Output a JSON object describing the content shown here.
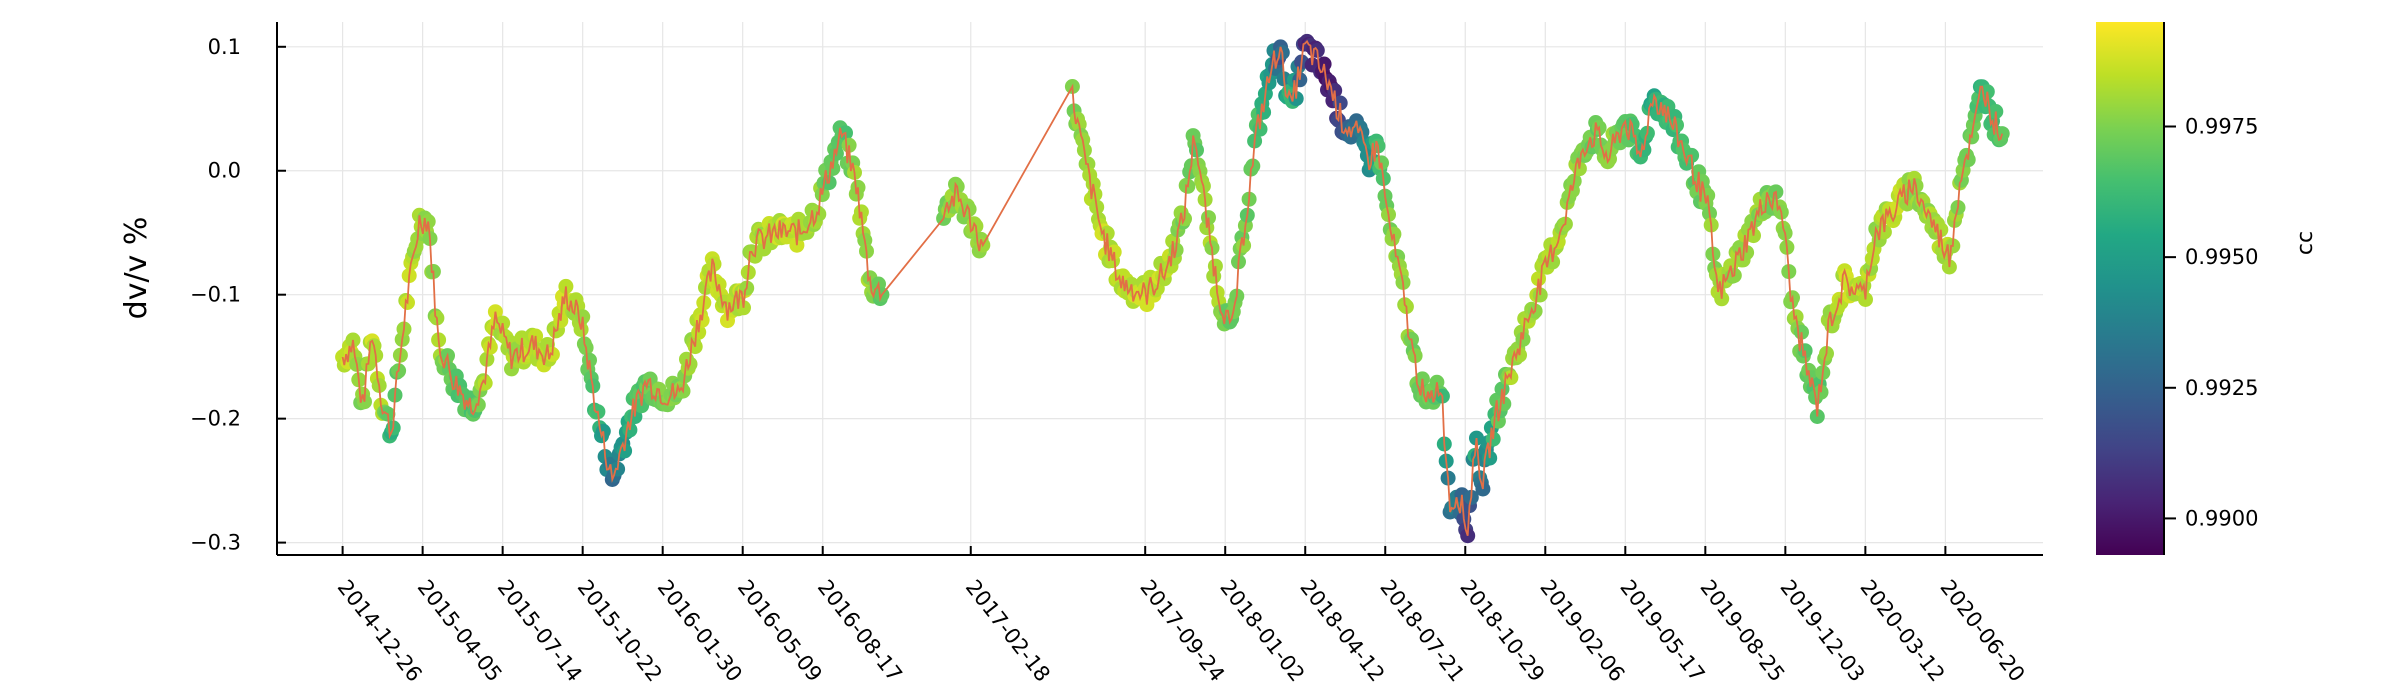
{
  "chart_data": {
    "type": "scatter",
    "ylabel": "dv/v %",
    "colorbar_label": "cc",
    "ylim": [
      -0.31,
      0.12
    ],
    "y_ticks": [
      -0.3,
      -0.2,
      -0.1,
      0.0,
      0.1
    ],
    "y_tick_labels": [
      "−0.3",
      "−0.2",
      "−0.1",
      "0.0",
      "0.1"
    ],
    "x_ticks": [
      "2014-12-26",
      "2015-04-05",
      "2015-07-14",
      "2015-10-22",
      "2016-01-30",
      "2016-05-09",
      "2016-08-17",
      "2017-02-18",
      "2017-09-24",
      "2018-01-02",
      "2018-04-12",
      "2018-07-21",
      "2018-10-29",
      "2019-02-06",
      "2019-05-17",
      "2019-08-25",
      "2019-12-03",
      "2020-03-12",
      "2020-06-20"
    ],
    "xlim": [
      "2014-10-05",
      "2020-10-20"
    ],
    "colorbar": {
      "colormap": "viridis",
      "range": [
        0.9893,
        0.9995
      ],
      "ticks": [
        0.99,
        0.9925,
        0.995,
        0.9975
      ],
      "tick_labels": [
        "0.9900",
        "0.9925",
        "0.9950",
        "0.9975"
      ]
    },
    "grid": true,
    "legend": "none",
    "line_color": "#e26f46",
    "series": [
      {
        "style": "scatter + line",
        "keypoints": [
          {
            "date": "2014-12-26",
            "dvv": -0.15,
            "cc": 0.9985
          },
          {
            "date": "2015-01-08",
            "dvv": -0.14,
            "cc": 0.9985
          },
          {
            "date": "2015-01-20",
            "dvv": -0.19,
            "cc": 0.9975
          },
          {
            "date": "2015-02-01",
            "dvv": -0.13,
            "cc": 0.9985
          },
          {
            "date": "2015-02-14",
            "dvv": -0.19,
            "cc": 0.998
          },
          {
            "date": "2015-02-25",
            "dvv": -0.21,
            "cc": 0.996
          },
          {
            "date": "2015-03-15",
            "dvv": -0.11,
            "cc": 0.9985
          },
          {
            "date": "2015-04-01",
            "dvv": -0.04,
            "cc": 0.998
          },
          {
            "date": "2015-04-12",
            "dvv": -0.04,
            "cc": 0.9975
          },
          {
            "date": "2015-04-25",
            "dvv": -0.14,
            "cc": 0.998
          },
          {
            "date": "2015-05-15",
            "dvv": -0.17,
            "cc": 0.997
          },
          {
            "date": "2015-06-05",
            "dvv": -0.19,
            "cc": 0.9965
          },
          {
            "date": "2015-06-20",
            "dvv": -0.17,
            "cc": 0.998
          },
          {
            "date": "2015-07-05",
            "dvv": -0.12,
            "cc": 0.9985
          },
          {
            "date": "2015-07-25",
            "dvv": -0.15,
            "cc": 0.998
          },
          {
            "date": "2015-08-20",
            "dvv": -0.14,
            "cc": 0.9985
          },
          {
            "date": "2015-09-10",
            "dvv": -0.15,
            "cc": 0.9985
          },
          {
            "date": "2015-10-01",
            "dvv": -0.1,
            "cc": 0.9985
          },
          {
            "date": "2015-10-20",
            "dvv": -0.12,
            "cc": 0.998
          },
          {
            "date": "2015-11-10",
            "dvv": -0.2,
            "cc": 0.996
          },
          {
            "date": "2015-11-28",
            "dvv": -0.25,
            "cc": 0.993
          },
          {
            "date": "2015-12-20",
            "dvv": -0.2,
            "cc": 0.996
          },
          {
            "date": "2016-01-10",
            "dvv": -0.17,
            "cc": 0.997
          },
          {
            "date": "2016-02-01",
            "dvv": -0.18,
            "cc": 0.9975
          },
          {
            "date": "2016-02-20",
            "dvv": -0.18,
            "cc": 0.9975
          },
          {
            "date": "2016-03-15",
            "dvv": -0.12,
            "cc": 0.9985
          },
          {
            "date": "2016-04-01",
            "dvv": -0.08,
            "cc": 0.9985
          },
          {
            "date": "2016-04-20",
            "dvv": -0.11,
            "cc": 0.9985
          },
          {
            "date": "2016-05-10",
            "dvv": -0.1,
            "cc": 0.9985
          },
          {
            "date": "2016-05-20",
            "dvv": -0.06,
            "cc": 0.998
          },
          {
            "date": "2016-06-20",
            "dvv": -0.05,
            "cc": 0.9985
          },
          {
            "date": "2016-07-20",
            "dvv": -0.05,
            "cc": 0.9985
          },
          {
            "date": "2016-08-10",
            "dvv": -0.03,
            "cc": 0.998
          },
          {
            "date": "2016-08-25",
            "dvv": 0.0,
            "cc": 0.997
          },
          {
            "date": "2016-09-10",
            "dvv": 0.03,
            "cc": 0.9965
          },
          {
            "date": "2016-09-28",
            "dvv": -0.01,
            "cc": 0.998
          },
          {
            "date": "2016-10-15",
            "dvv": -0.09,
            "cc": 0.998
          },
          {
            "date": "2016-10-30",
            "dvv": -0.1,
            "cc": 0.997
          },
          {
            "date": "2017-01-15",
            "dvv": -0.03,
            "cc": 0.9975
          },
          {
            "date": "2017-02-01",
            "dvv": -0.02,
            "cc": 0.998
          },
          {
            "date": "2017-02-18",
            "dvv": -0.04,
            "cc": 0.9975
          },
          {
            "date": "2017-03-05",
            "dvv": -0.06,
            "cc": 0.998
          },
          {
            "date": "2017-06-25",
            "dvv": 0.06,
            "cc": 0.9975
          },
          {
            "date": "2017-07-10",
            "dvv": 0.01,
            "cc": 0.998
          },
          {
            "date": "2017-08-01",
            "dvv": -0.05,
            "cc": 0.9985
          },
          {
            "date": "2017-08-25",
            "dvv": -0.09,
            "cc": 0.9985
          },
          {
            "date": "2017-09-24",
            "dvv": -0.1,
            "cc": 0.9985
          },
          {
            "date": "2017-10-20",
            "dvv": -0.08,
            "cc": 0.9985
          },
          {
            "date": "2017-11-10",
            "dvv": -0.04,
            "cc": 0.9975
          },
          {
            "date": "2017-11-25",
            "dvv": 0.03,
            "cc": 0.997
          },
          {
            "date": "2017-12-10",
            "dvv": -0.04,
            "cc": 0.998
          },
          {
            "date": "2017-12-25",
            "dvv": -0.1,
            "cc": 0.998
          },
          {
            "date": "2018-01-10",
            "dvv": -0.13,
            "cc": 0.997
          },
          {
            "date": "2018-01-25",
            "dvv": -0.05,
            "cc": 0.9975
          },
          {
            "date": "2018-02-10",
            "dvv": 0.03,
            "cc": 0.9965
          },
          {
            "date": "2018-02-28",
            "dvv": 0.08,
            "cc": 0.995
          },
          {
            "date": "2018-03-10",
            "dvv": 0.1,
            "cc": 0.992
          },
          {
            "date": "2018-03-25",
            "dvv": 0.05,
            "cc": 0.9965
          },
          {
            "date": "2018-04-12",
            "dvv": 0.1,
            "cc": 0.9905
          },
          {
            "date": "2018-04-25",
            "dvv": 0.09,
            "cc": 0.9905
          },
          {
            "date": "2018-05-12",
            "dvv": 0.07,
            "cc": 0.99
          },
          {
            "date": "2018-05-28",
            "dvv": 0.04,
            "cc": 0.992
          },
          {
            "date": "2018-06-15",
            "dvv": 0.03,
            "cc": 0.993
          },
          {
            "date": "2018-07-01",
            "dvv": 0.01,
            "cc": 0.9945
          },
          {
            "date": "2018-07-12",
            "dvv": 0.02,
            "cc": 0.9965
          },
          {
            "date": "2018-07-25",
            "dvv": -0.04,
            "cc": 0.9975
          },
          {
            "date": "2018-08-10",
            "dvv": -0.09,
            "cc": 0.998
          },
          {
            "date": "2018-08-25",
            "dvv": -0.15,
            "cc": 0.9975
          },
          {
            "date": "2018-09-10",
            "dvv": -0.19,
            "cc": 0.997
          },
          {
            "date": "2018-09-28",
            "dvv": -0.17,
            "cc": 0.997
          },
          {
            "date": "2018-10-10",
            "dvv": -0.27,
            "cc": 0.993
          },
          {
            "date": "2018-10-20",
            "dvv": -0.26,
            "cc": 0.994
          },
          {
            "date": "2018-11-01",
            "dvv": -0.29,
            "cc": 0.9905
          },
          {
            "date": "2018-11-10",
            "dvv": -0.22,
            "cc": 0.9955
          },
          {
            "date": "2018-11-20",
            "dvv": -0.25,
            "cc": 0.993
          },
          {
            "date": "2018-12-05",
            "dvv": -0.2,
            "cc": 0.9965
          },
          {
            "date": "2018-12-25",
            "dvv": -0.16,
            "cc": 0.998
          },
          {
            "date": "2019-01-20",
            "dvv": -0.11,
            "cc": 0.998
          },
          {
            "date": "2019-02-06",
            "dvv": -0.08,
            "cc": 0.9985
          },
          {
            "date": "2019-03-01",
            "dvv": -0.04,
            "cc": 0.998
          },
          {
            "date": "2019-03-25",
            "dvv": 0.02,
            "cc": 0.9975
          },
          {
            "date": "2019-04-10",
            "dvv": 0.03,
            "cc": 0.997
          },
          {
            "date": "2019-04-25",
            "dvv": 0.01,
            "cc": 0.998
          },
          {
            "date": "2019-05-17",
            "dvv": 0.04,
            "cc": 0.997
          },
          {
            "date": "2019-06-05",
            "dvv": 0.01,
            "cc": 0.9965
          },
          {
            "date": "2019-06-20",
            "dvv": 0.06,
            "cc": 0.9955
          },
          {
            "date": "2019-07-05",
            "dvv": 0.05,
            "cc": 0.996
          },
          {
            "date": "2019-07-20",
            "dvv": 0.03,
            "cc": 0.9965
          },
          {
            "date": "2019-08-10",
            "dvv": 0.0,
            "cc": 0.997
          },
          {
            "date": "2019-08-28",
            "dvv": -0.03,
            "cc": 0.9975
          },
          {
            "date": "2019-09-10",
            "dvv": -0.1,
            "cc": 0.998
          },
          {
            "date": "2019-09-28",
            "dvv": -0.08,
            "cc": 0.998
          },
          {
            "date": "2019-10-20",
            "dvv": -0.05,
            "cc": 0.998
          },
          {
            "date": "2019-11-10",
            "dvv": -0.02,
            "cc": 0.9975
          },
          {
            "date": "2019-11-28",
            "dvv": -0.03,
            "cc": 0.9975
          },
          {
            "date": "2019-12-12",
            "dvv": -0.11,
            "cc": 0.998
          },
          {
            "date": "2019-12-30",
            "dvv": -0.16,
            "cc": 0.997
          },
          {
            "date": "2020-01-12",
            "dvv": -0.19,
            "cc": 0.9965
          },
          {
            "date": "2020-01-28",
            "dvv": -0.12,
            "cc": 0.998
          },
          {
            "date": "2020-02-15",
            "dvv": -0.09,
            "cc": 0.9985
          },
          {
            "date": "2020-03-10",
            "dvv": -0.1,
            "cc": 0.9985
          },
          {
            "date": "2020-03-25",
            "dvv": -0.05,
            "cc": 0.998
          },
          {
            "date": "2020-04-20",
            "dvv": -0.03,
            "cc": 0.9985
          },
          {
            "date": "2020-05-10",
            "dvv": -0.01,
            "cc": 0.998
          },
          {
            "date": "2020-05-25",
            "dvv": -0.03,
            "cc": 0.998
          },
          {
            "date": "2020-06-10",
            "dvv": -0.05,
            "cc": 0.998
          },
          {
            "date": "2020-06-25",
            "dvv": -0.07,
            "cc": 0.9985
          },
          {
            "date": "2020-07-10",
            "dvv": 0.0,
            "cc": 0.9975
          },
          {
            "date": "2020-07-25",
            "dvv": 0.03,
            "cc": 0.997
          },
          {
            "date": "2020-08-05",
            "dvv": 0.07,
            "cc": 0.996
          },
          {
            "date": "2020-08-20",
            "dvv": 0.04,
            "cc": 0.9965
          },
          {
            "date": "2020-08-30",
            "dvv": 0.03,
            "cc": 0.997
          }
        ]
      }
    ]
  }
}
